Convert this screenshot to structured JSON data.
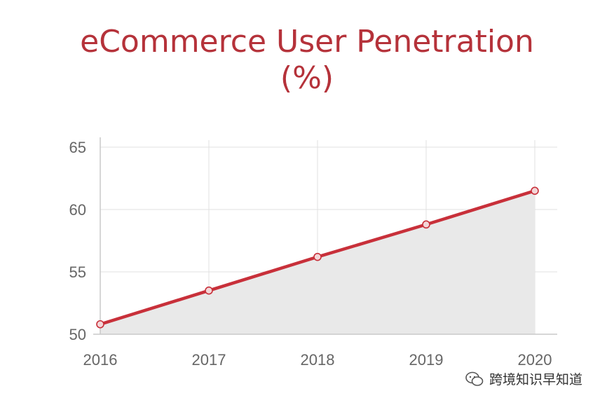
{
  "colors": {
    "title": "#b5323a",
    "line": "#c8303a",
    "area": "#e9e9e9",
    "grid": "#e0e0e0",
    "axis": "#c9c9c9",
    "tick": "#666666"
  },
  "chart_data": {
    "type": "line",
    "title": "eCommerce User Penetration",
    "subtitle": "(%)",
    "categories": [
      "2016",
      "2017",
      "2018",
      "2019",
      "2020"
    ],
    "series": [
      {
        "values": [
          50.8,
          53.5,
          56.2,
          58.8,
          61.5
        ]
      }
    ],
    "yticks": [
      "65",
      "60",
      "55",
      "50"
    ],
    "ylim": [
      50,
      65
    ],
    "area_fill": true,
    "grid": true
  },
  "watermark": {
    "text": "跨境知识早知道",
    "icon": "wechat-icon"
  }
}
